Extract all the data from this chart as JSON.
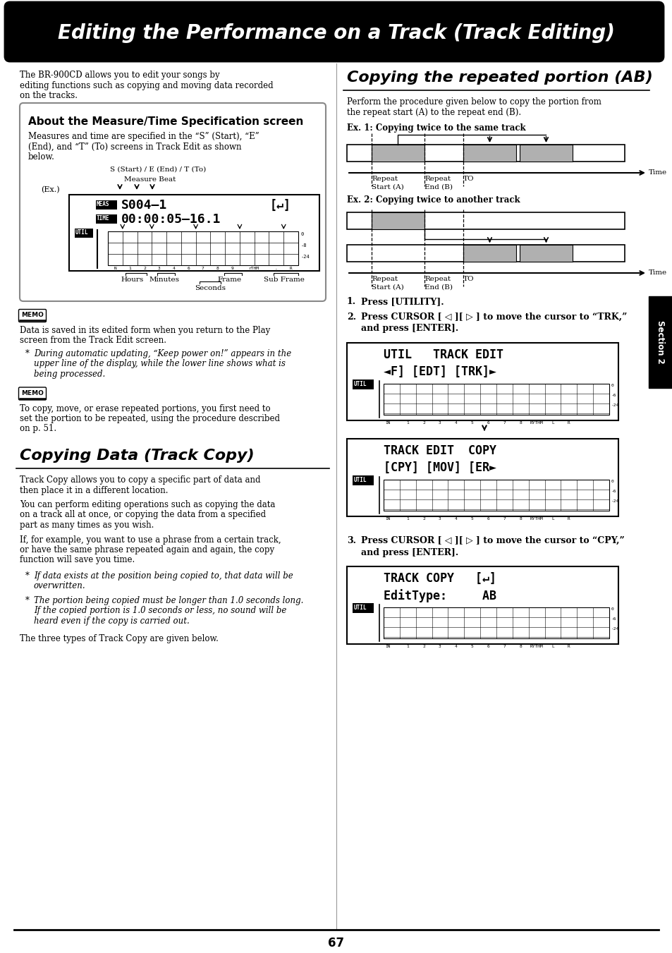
{
  "title": "Editing the Performance on a Track (Track Editing)",
  "page_number": "67",
  "bg_color": "#ffffff",
  "intro_text": "The BR-900CD allows you to edit your songs by performing editing functions such as copying and moving data recorded on the tracks.",
  "box_title": "About the Measure/Time Specification screen",
  "box_body_line1": "Measures and time are specified in the “S” (Start), “E”",
  "box_body_line2": "(End), and “T” (To) screens in Track Edit as shown",
  "box_body_line3": "below.",
  "memo1_body_line1": "Data is saved in its edited form when you return to the Play",
  "memo1_body_line2": "screen from the Track Edit screen.",
  "memo1_bullet_line1": "During automatic updating, “Keep power on!” appears in the",
  "memo1_bullet_line2": "upper line of the display, while the lower line shows what is",
  "memo1_bullet_line3": "being processed.",
  "memo2_body_line1": "To copy, move, or erase repeated portions, you first need to",
  "memo2_body_line2": "set the portion to be repeated, using the procedure described",
  "memo2_body_line3": "on p. 51.",
  "copy_title": "Copying Data (Track Copy)",
  "copy_p1_line1": "Track Copy allows you to copy a specific part of data and",
  "copy_p1_line2": "then place it in a different location.",
  "copy_p2_line1": "You can perform editing operations such as copying the data",
  "copy_p2_line2": "on a track all at once, or copying the data from a specified",
  "copy_p2_line3": "part as many times as you wish.",
  "copy_p3_line1": "If, for example, you want to use a phrase from a certain track,",
  "copy_p3_line2": "or have the same phrase repeated again and again, the copy",
  "copy_p3_line3": "function will save you time.",
  "copy_b1_line1": "If data exists at the position being copied to, that data will be",
  "copy_b1_line2": "overwritten.",
  "copy_b2_line1": "The portion being copied must be longer than 1.0 seconds long.",
  "copy_b2_line2": "If the copied portion is 1.0 seconds or less, no sound will be",
  "copy_b2_line3": "heard even if the copy is carried out.",
  "copy_p4": "The three types of Track Copy are given below.",
  "ab_title": "Copying the repeated portion (AB)",
  "ab_intro_line1": "Perform the procedure given below to copy the portion from",
  "ab_intro_line2": "the repeat start (A) to the repeat end (B).",
  "ex1_label": "Ex. 1: Copying twice to the same track",
  "ex2_label": "Ex. 2: Copying twice to another track",
  "step1_num": "1.",
  "step1_text": "Press [UTILITY].",
  "step2_num": "2.",
  "step2_line1": "Press CURSOR [ ◁ ][ ▷ ] to move the cursor to “TRK,”",
  "step2_line2": "and press [ENTER].",
  "step3_num": "3.",
  "step3_line1": "Press CURSOR [ ◁ ][ ▷ ] to move the cursor to “CPY,”",
  "step3_line2": "and press [ENTER].",
  "lcd1_line1": "UTIL   TRACK EDIT",
  "lcd1_line2": "◄F] [EDT] [TRK]►",
  "lcd2_line1": "TRACK EDIT  COPY",
  "lcd2_line2": "[CPY] [MOV] [ER►",
  "lcd3_line1": "TRACK COPY   [↵]",
  "lcd3_line2": "EditType:     AB"
}
